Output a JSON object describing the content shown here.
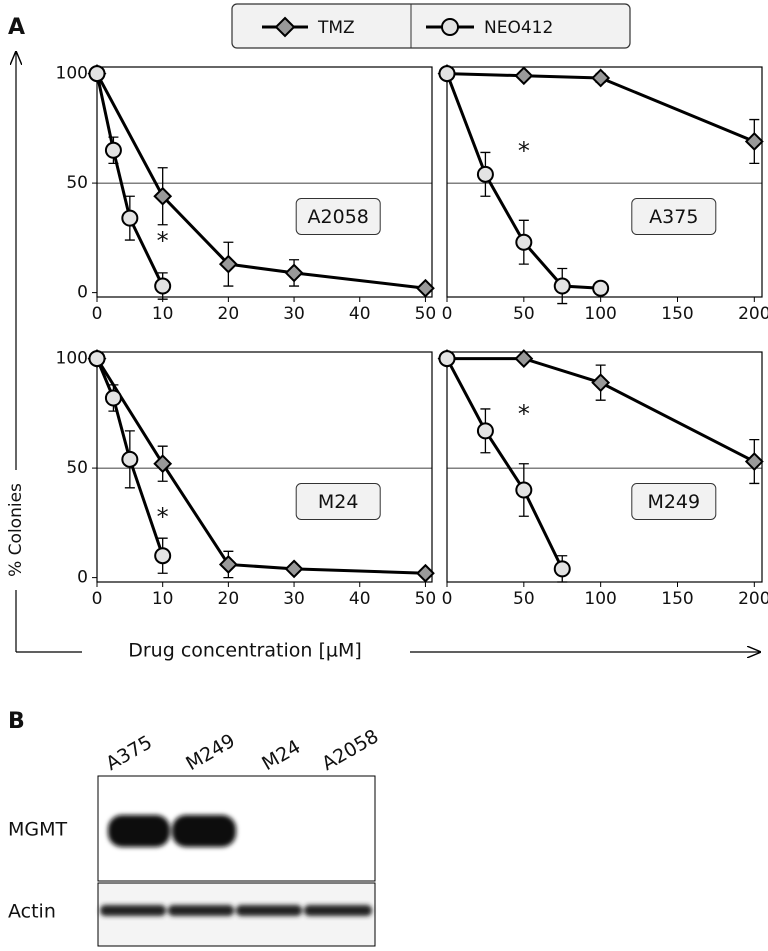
{
  "panel_a": "A",
  "panel_b": "B",
  "y_label": "% Colonies",
  "x_label": "Drug concentration [µM]",
  "chart_data": [
    {
      "type": "line",
      "label": "A2058",
      "xlim": [
        0,
        51
      ],
      "xticks": [
        0,
        10,
        20,
        30,
        40,
        50
      ],
      "ylim": [
        -2,
        103
      ],
      "yticks": [
        0,
        50,
        100
      ],
      "hline": 50,
      "series": [
        {
          "name": "TMZ",
          "color": "#999999",
          "marker": "diamond",
          "x": [
            0,
            10,
            20,
            30,
            50
          ],
          "values": [
            100,
            44,
            13,
            9,
            2
          ],
          "errors": [
            0,
            13,
            10,
            6,
            0
          ]
        },
        {
          "name": "NEO412",
          "color": "#e3e3e3",
          "marker": "circle",
          "x": [
            0,
            2.5,
            5,
            10
          ],
          "values": [
            100,
            65,
            34,
            3
          ],
          "errors": [
            0,
            6,
            10,
            6
          ]
        }
      ],
      "annotation": {
        "text": "*",
        "x": 10,
        "y": 25
      }
    },
    {
      "type": "line",
      "label": "A375",
      "xlim": [
        0,
        205
      ],
      "xticks": [
        0,
        50,
        100,
        150,
        200
      ],
      "ylim": [
        -2,
        103
      ],
      "hline": 50,
      "series": [
        {
          "name": "TMZ",
          "color": "#999999",
          "marker": "diamond",
          "x": [
            0,
            50,
            100,
            200
          ],
          "values": [
            100,
            99,
            98,
            69
          ],
          "errors": [
            0,
            0,
            2,
            10
          ]
        },
        {
          "name": "NEO412",
          "color": "#e3e3e3",
          "marker": "circle",
          "x": [
            0,
            25,
            50,
            75,
            100
          ],
          "values": [
            100,
            54,
            23,
            3,
            2
          ],
          "errors": [
            0,
            10,
            10,
            8,
            0
          ]
        }
      ],
      "annotation": {
        "text": "*",
        "x": 50,
        "y": 66
      }
    },
    {
      "type": "line",
      "label": "M24",
      "xlim": [
        0,
        51
      ],
      "xticks": [
        0,
        10,
        20,
        30,
        40,
        50
      ],
      "ylim": [
        -2,
        103
      ],
      "yticks": [
        0,
        50,
        100
      ],
      "hline": 50,
      "series": [
        {
          "name": "TMZ",
          "color": "#999999",
          "marker": "diamond",
          "x": [
            0,
            10,
            20,
            30,
            50
          ],
          "values": [
            100,
            52,
            6,
            4,
            2
          ],
          "errors": [
            0,
            8,
            6,
            0,
            0
          ]
        },
        {
          "name": "NEO412",
          "color": "#e3e3e3",
          "marker": "circle",
          "x": [
            0,
            2.5,
            5,
            10
          ],
          "values": [
            100,
            82,
            54,
            10
          ],
          "errors": [
            0,
            6,
            13,
            8
          ]
        }
      ],
      "annotation": {
        "text": "*",
        "x": 10,
        "y": 29
      }
    },
    {
      "type": "line",
      "label": "M249",
      "xlim": [
        0,
        205
      ],
      "xticks": [
        0,
        50,
        100,
        150,
        200
      ],
      "ylim": [
        -2,
        103
      ],
      "hline": 50,
      "series": [
        {
          "name": "TMZ",
          "color": "#999999",
          "marker": "diamond",
          "x": [
            0,
            50,
            100,
            200
          ],
          "values": [
            100,
            100,
            89,
            53
          ],
          "errors": [
            0,
            0,
            8,
            10
          ]
        },
        {
          "name": "NEO412",
          "color": "#e3e3e3",
          "marker": "circle",
          "x": [
            0,
            25,
            50,
            75
          ],
          "values": [
            100,
            67,
            40,
            4
          ],
          "errors": [
            0,
            10,
            12,
            6
          ]
        }
      ],
      "annotation": {
        "text": "*",
        "x": 50,
        "y": 76
      }
    }
  ],
  "blot": {
    "lanes": [
      "A375",
      "M249",
      "M24",
      "A2058"
    ],
    "rows": [
      "MGMT",
      "Actin"
    ]
  }
}
